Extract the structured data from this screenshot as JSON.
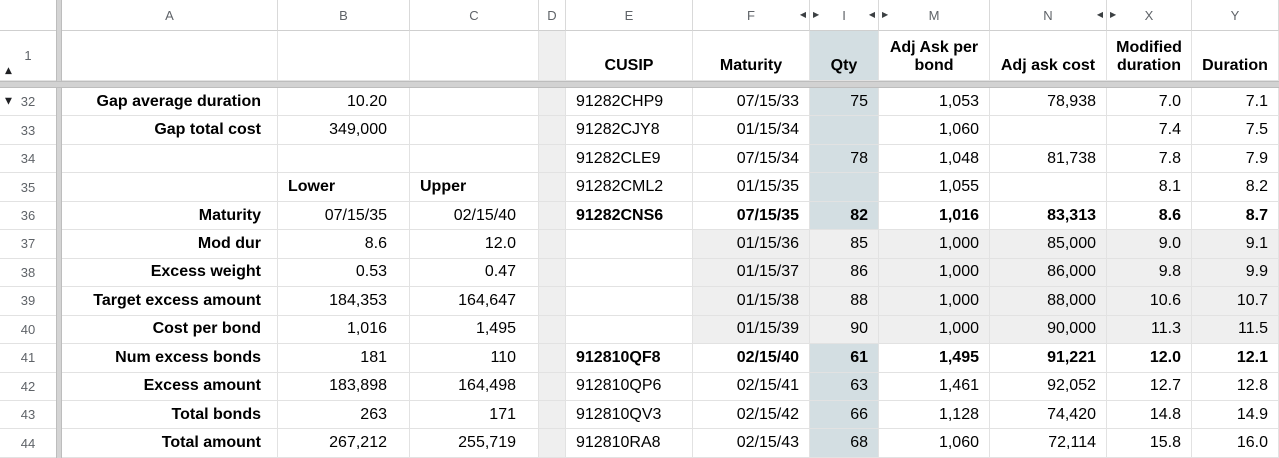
{
  "colors": {
    "qty_highlight": "#d3dee2",
    "band_gray": "#efefef",
    "divider_gray": "#d2d2d2",
    "header_text": "#5f6368",
    "gridline": "#e2e2e2"
  },
  "sheet": {
    "markers": {
      "hidden_left": "▶",
      "hidden_right": "◀",
      "collapse_up": "▲",
      "collapse_down": "▼"
    },
    "columns": [
      {
        "letter": "A"
      },
      {
        "letter": "B"
      },
      {
        "letter": "C"
      },
      {
        "letter": "D"
      },
      {
        "letter": "E"
      },
      {
        "letter": "F",
        "hidden_right": true
      },
      {
        "letter": "I",
        "hidden_left": true,
        "hidden_right": true
      },
      {
        "letter": "M",
        "hidden_left": true
      },
      {
        "letter": "N",
        "hidden_right": true
      },
      {
        "letter": "X",
        "hidden_left": true
      },
      {
        "letter": "Y"
      }
    ],
    "frozen_row": {
      "number": "1",
      "headers": {
        "E": "CUSIP",
        "F": "Maturity",
        "I": "Qty",
        "M": "Adj Ask per bond",
        "N": "Adj ask cost",
        "X": "Modified duration",
        "Y": "Duration"
      }
    },
    "rows": [
      {
        "n": "32",
        "group": true,
        "cells": {
          "A": "Gap average duration",
          "B": "10.20",
          "E": "91282CHP9",
          "F": "07/15/33",
          "I": "75",
          "M": "1,053",
          "N": "78,938",
          "X": "7.0",
          "Y": "7.1"
        }
      },
      {
        "n": "33",
        "cells": {
          "A": "Gap total cost",
          "B": "349,000",
          "E": "91282CJY8",
          "F": "01/15/34",
          "I": "",
          "M": "1,060",
          "N": "",
          "X": "7.4",
          "Y": "7.5"
        }
      },
      {
        "n": "34",
        "cells": {
          "E": "91282CLE9",
          "F": "07/15/34",
          "I": "78",
          "M": "1,048",
          "N": "81,738",
          "X": "7.8",
          "Y": "7.9"
        }
      },
      {
        "n": "35",
        "cells": {
          "B": {
            "t": "Lower",
            "cls": "al bold"
          },
          "C": {
            "t": "Upper",
            "cls": "al bold"
          },
          "E": "91282CML2",
          "F": "01/15/35",
          "I": "",
          "M": "1,055",
          "N": "",
          "X": "8.1",
          "Y": "8.2"
        }
      },
      {
        "n": "36",
        "bold": true,
        "cells": {
          "A": "Maturity",
          "B": "07/15/35",
          "C": "02/15/40",
          "E": "91282CNS6",
          "F": "07/15/35",
          "I": "82",
          "M": "1,016",
          "N": "83,313",
          "X": "8.6",
          "Y": "8.7"
        }
      },
      {
        "n": "37",
        "band": true,
        "cells": {
          "A": "Mod dur",
          "B": "8.6",
          "C": "12.0",
          "F": "01/15/36",
          "I": "85",
          "M": "1,000",
          "N": "85,000",
          "X": "9.0",
          "Y": "9.1"
        }
      },
      {
        "n": "38",
        "band": true,
        "cells": {
          "A": "Excess weight",
          "B": "0.53",
          "C": "0.47",
          "F": "01/15/37",
          "I": "86",
          "M": "1,000",
          "N": "86,000",
          "X": "9.8",
          "Y": "9.9"
        }
      },
      {
        "n": "39",
        "band": true,
        "cells": {
          "A": "Target excess amount",
          "B": "184,353",
          "C": "164,647",
          "F": "01/15/38",
          "I": "88",
          "M": "1,000",
          "N": "88,000",
          "X": "10.6",
          "Y": "10.7"
        }
      },
      {
        "n": "40",
        "band": true,
        "cells": {
          "A": "Cost per bond",
          "B": "1,016",
          "C": "1,495",
          "F": "01/15/39",
          "I": "90",
          "M": "1,000",
          "N": "90,000",
          "X": "11.3",
          "Y": "11.5"
        }
      },
      {
        "n": "41",
        "bold": true,
        "cells": {
          "A": "Num excess bonds",
          "B": "181",
          "C": "110",
          "E": "912810QF8",
          "F": "02/15/40",
          "I": "61",
          "M": "1,495",
          "N": "91,221",
          "X": "12.0",
          "Y": "12.1"
        }
      },
      {
        "n": "42",
        "cells": {
          "A": "Excess amount",
          "B": "183,898",
          "C": "164,498",
          "E": "912810QP6",
          "F": "02/15/41",
          "I": "63",
          "M": "1,461",
          "N": "92,052",
          "X": "12.7",
          "Y": "12.8"
        }
      },
      {
        "n": "43",
        "cells": {
          "A": "Total bonds",
          "B": "263",
          "C": "171",
          "E": "912810QV3",
          "F": "02/15/42",
          "I": "66",
          "M": "1,128",
          "N": "74,420",
          "X": "14.8",
          "Y": "14.9"
        }
      },
      {
        "n": "44",
        "cells": {
          "A": "Total amount",
          "B": "267,212",
          "C": "255,719",
          "E": "912810RA8",
          "F": "02/15/43",
          "I": "68",
          "M": "1,060",
          "N": "72,114",
          "X": "15.8",
          "Y": "16.0"
        }
      }
    ]
  }
}
